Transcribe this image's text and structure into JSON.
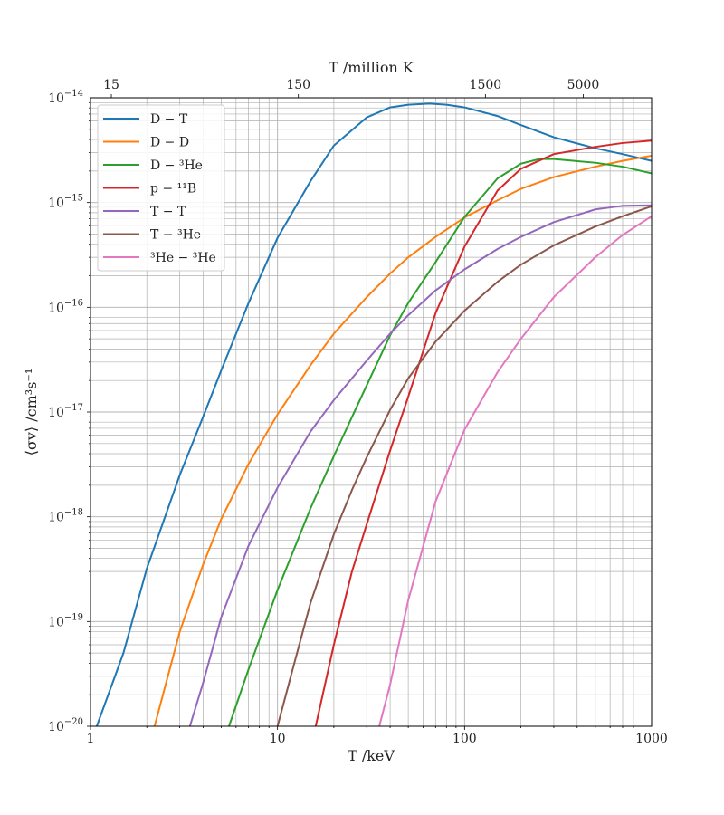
{
  "chart_data": {
    "type": "line",
    "xscale": "log",
    "yscale": "log",
    "xlabel": "T /keV",
    "ylabel": "⟨σv⟩ /cm³s⁻¹",
    "top_xlabel": "T /million K",
    "xlim": [
      1,
      1000
    ],
    "ylim": [
      1e-20,
      1e-14
    ],
    "grid": "major-and-minor",
    "legend_placement": "upper-left",
    "x_ticks": [
      {
        "value": 1,
        "label": "1"
      },
      {
        "value": 10,
        "label": "10"
      },
      {
        "value": 100,
        "label": "100"
      },
      {
        "value": 1000,
        "label": "1000"
      }
    ],
    "y_ticks": [
      {
        "value": -20,
        "base": "10",
        "exp": "−20"
      },
      {
        "value": -19,
        "base": "10",
        "exp": "−19"
      },
      {
        "value": -18,
        "base": "10",
        "exp": "−18"
      },
      {
        "value": -17,
        "base": "10",
        "exp": "−17"
      },
      {
        "value": -16,
        "base": "10",
        "exp": "−16"
      },
      {
        "value": -15,
        "base": "10",
        "exp": "−15"
      },
      {
        "value": -14,
        "base": "10",
        "exp": "−14"
      }
    ],
    "top_ticks": [
      {
        "value": 1.2925,
        "label": "15"
      },
      {
        "value": 12.925,
        "label": "150"
      },
      {
        "value": 129.25,
        "label": "1500"
      },
      {
        "value": 430.8,
        "label": "5000"
      }
    ],
    "series": [
      {
        "name": "D − T",
        "color": "#1f77b4",
        "x": [
          1.08,
          1.5,
          2,
          3,
          4,
          5,
          7,
          10,
          15,
          20,
          30,
          40,
          50,
          65,
          80,
          100,
          150,
          200,
          300,
          500,
          700,
          1000
        ],
        "y": [
          1e-20,
          5e-20,
          3.2e-19,
          2.5e-18,
          9e-18,
          2.5e-17,
          1.1e-16,
          4.6e-16,
          1.6e-15,
          3.5e-15,
          6.5e-15,
          8.1e-15,
          8.6e-15,
          8.8e-15,
          8.6e-15,
          8.1e-15,
          6.7e-15,
          5.5e-15,
          4.2e-15,
          3.3e-15,
          2.9e-15,
          2.5e-15
        ]
      },
      {
        "name": "D − D",
        "color": "#ff7f0e",
        "x": [
          2.2,
          3,
          4,
          5,
          7,
          10,
          15,
          20,
          30,
          40,
          50,
          70,
          100,
          150,
          200,
          300,
          500,
          700,
          1000
        ],
        "y": [
          1e-20,
          8e-20,
          3.5e-19,
          9.5e-19,
          3.2e-18,
          9.5e-18,
          2.8e-17,
          5.6e-17,
          1.25e-16,
          2.1e-16,
          3e-16,
          4.7e-16,
          7.2e-16,
          1.05e-15,
          1.35e-15,
          1.75e-15,
          2.2e-15,
          2.5e-15,
          2.8e-15
        ]
      },
      {
        "name": "D − ³He",
        "color": "#2ca02c",
        "x": [
          5.5,
          7,
          10,
          15,
          20,
          30,
          40,
          50,
          70,
          100,
          150,
          200,
          250,
          300,
          500,
          700,
          1000
        ],
        "y": [
          1e-20,
          3.5e-20,
          2e-19,
          1.2e-18,
          3.8e-18,
          1.8e-17,
          5.4e-17,
          1.1e-16,
          2.7e-16,
          7.3e-16,
          1.7e-15,
          2.35e-15,
          2.6e-15,
          2.6e-15,
          2.4e-15,
          2.2e-15,
          1.9e-15
        ]
      },
      {
        "name": "p − ¹¹B",
        "color": "#d62728",
        "x": [
          16,
          20,
          25,
          30,
          40,
          50,
          70,
          100,
          150,
          200,
          300,
          500,
          700,
          1000
        ],
        "y": [
          1e-20,
          6e-20,
          3e-19,
          8.5e-19,
          4.3e-18,
          1.4e-17,
          8.8e-17,
          3.8e-16,
          1.3e-15,
          2.1e-15,
          2.9e-15,
          3.4e-15,
          3.7e-15,
          3.9e-15
        ]
      },
      {
        "name": "T − T",
        "color": "#9467bd",
        "x": [
          3.4,
          4,
          5,
          7,
          10,
          15,
          20,
          30,
          40,
          50,
          70,
          100,
          150,
          200,
          300,
          500,
          700,
          1000
        ],
        "y": [
          1e-20,
          2.6e-20,
          1.1e-19,
          5.3e-19,
          1.9e-18,
          6.5e-18,
          1.3e-17,
          3.1e-17,
          5.6e-17,
          8.4e-17,
          1.45e-16,
          2.3e-16,
          3.6e-16,
          4.7e-16,
          6.5e-16,
          8.6e-16,
          9.3e-16,
          9.4e-16
        ]
      },
      {
        "name": "T − ³He",
        "color": "#8c564b",
        "x": [
          10,
          12,
          15,
          20,
          25,
          30,
          40,
          50,
          70,
          100,
          150,
          200,
          300,
          500,
          700,
          1000
        ],
        "y": [
          1e-20,
          3.4e-20,
          1.5e-19,
          6.8e-19,
          1.8e-18,
          3.7e-18,
          1.05e-17,
          2.1e-17,
          4.7e-17,
          9.3e-17,
          1.75e-16,
          2.55e-16,
          3.9e-16,
          5.9e-16,
          7.4e-16,
          9.2e-16
        ]
      },
      {
        "name": "³He − ³He",
        "color": "#e377c2",
        "x": [
          35,
          40,
          50,
          70,
          100,
          150,
          200,
          300,
          500,
          700,
          1000
        ],
        "y": [
          1e-20,
          2.5e-20,
          1.6e-19,
          1.4e-18,
          6.8e-18,
          2.4e-17,
          5e-17,
          1.25e-16,
          3e-16,
          4.9e-16,
          7.4e-16
        ]
      }
    ]
  }
}
